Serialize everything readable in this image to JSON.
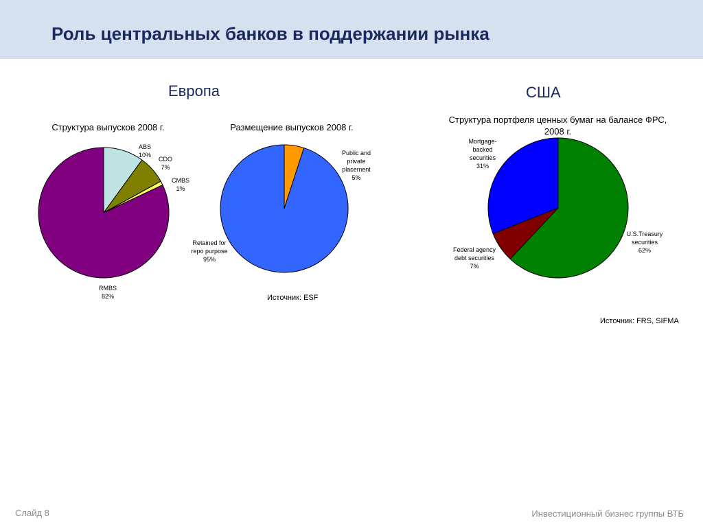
{
  "slide": {
    "title": "Роль центральных банков в поддержании рынка",
    "footer_left": "Слайд 8",
    "footer_right": "Инвестиционный бизнес группы ВТБ"
  },
  "regions": {
    "europe": "Европа",
    "usa": "США"
  },
  "sources": {
    "europe": "Источник: ESF",
    "usa": "Источник: FRS, SIFMA"
  },
  "chart_data": [
    {
      "type": "pie",
      "title": "Структура выпусков 2008 г.",
      "slices": [
        {
          "name": "ABS",
          "value": 10,
          "label": "10%",
          "color": "#c0e4e4"
        },
        {
          "name": "CDO",
          "value": 7,
          "label": "7%",
          "color": "#808000"
        },
        {
          "name": "CMBS",
          "value": 1,
          "label": "1%",
          "color": "#ffff66"
        },
        {
          "name": "RMBS",
          "value": 82,
          "label": "82%",
          "color": "#800080"
        }
      ]
    },
    {
      "type": "pie",
      "title": "Размещение выпусков 2008 г.",
      "slices": [
        {
          "name": "Public and private placement",
          "value": 5,
          "label": "5%",
          "color": "#ff9900"
        },
        {
          "name": "Retained for repo purpose",
          "value": 95,
          "label": "95%",
          "color": "#3366ff"
        }
      ]
    },
    {
      "type": "pie",
      "title": "Структура портфеля ценных бумаг на балансе ФРС, 2008 г.",
      "slices": [
        {
          "name": "U.S.Treasury securities",
          "value": 62,
          "label": "62%",
          "color": "#008000"
        },
        {
          "name": "Federal agency debt securities",
          "value": 7,
          "label": "7%",
          "color": "#800000"
        },
        {
          "name": "Mortgage-backed securities",
          "value": 31,
          "label": "31%",
          "color": "#0000ff"
        }
      ]
    }
  ]
}
